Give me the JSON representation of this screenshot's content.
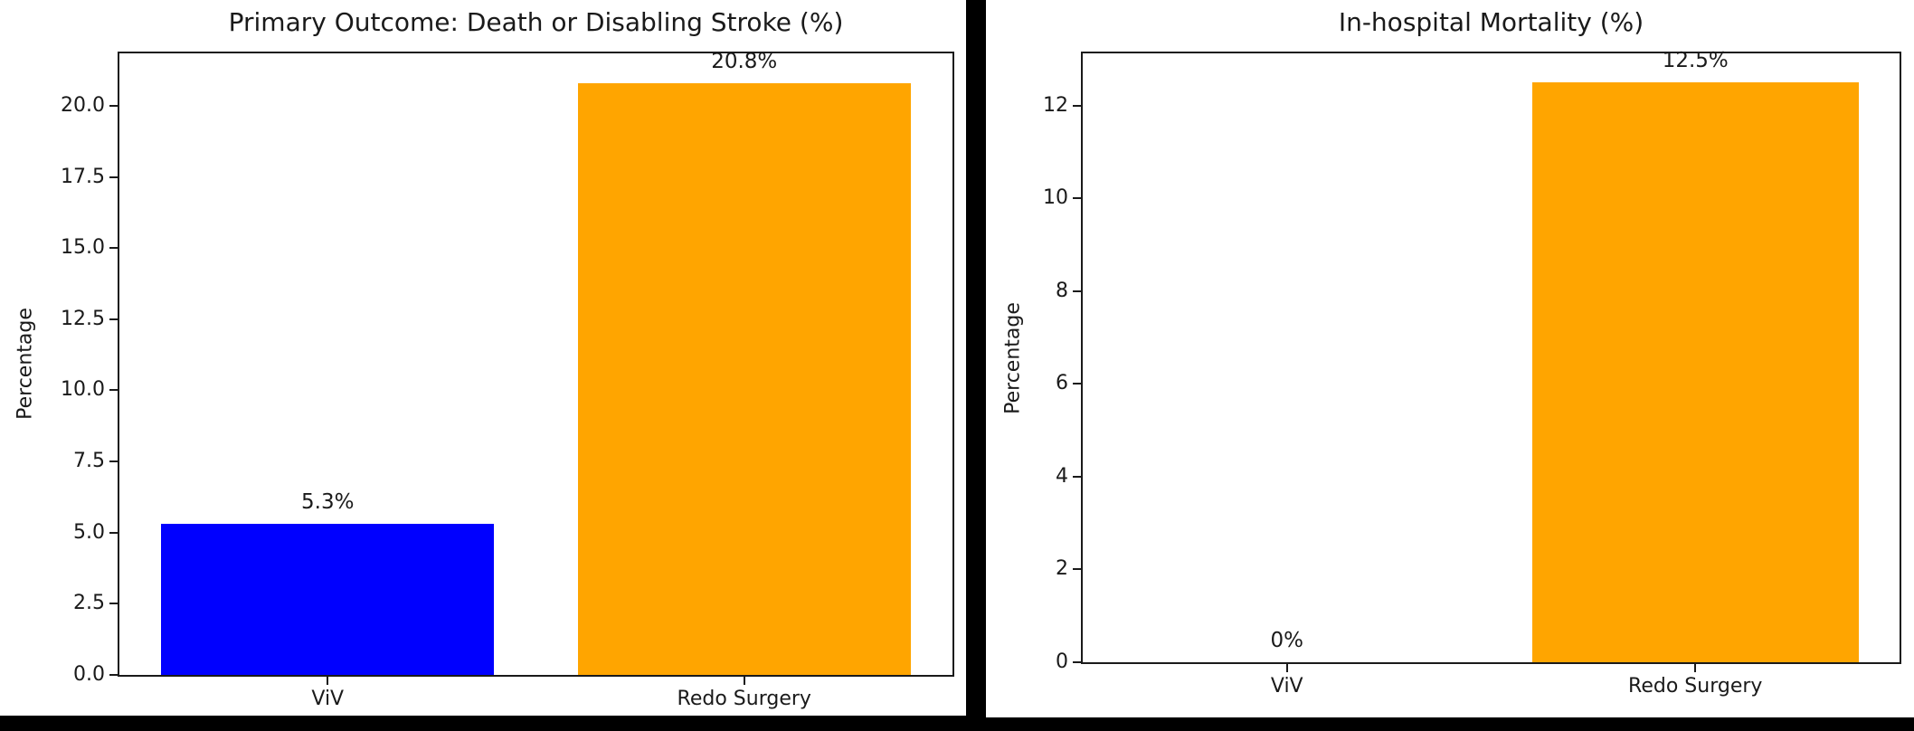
{
  "page_bg": "#000000",
  "panel_bg": "#ffffff",
  "axis_color": "#1a1a1a",
  "chart_data": [
    {
      "type": "bar",
      "title": "Primary Outcome: Death or Disabling Stroke (%)",
      "xlabel": "",
      "ylabel": "Percentage",
      "categories": [
        "ViV",
        "Redo Surgery"
      ],
      "values": [
        5.3,
        20.8
      ],
      "value_labels": [
        "5.3%",
        "20.8%"
      ],
      "bar_colors": [
        "#0000ff",
        "#ffa500"
      ],
      "ylim": [
        0,
        21.84
      ],
      "yticks": [
        0.0,
        2.5,
        5.0,
        7.5,
        10.0,
        12.5,
        15.0,
        17.5,
        20.0
      ],
      "ytick_labels": [
        "0.0",
        "2.5",
        "5.0",
        "7.5",
        "10.0",
        "12.5",
        "15.0",
        "17.5",
        "20.0"
      ],
      "grid": false,
      "legend": null
    },
    {
      "type": "bar",
      "title": "In-hospital Mortality (%)",
      "xlabel": "",
      "ylabel": "Percentage",
      "categories": [
        "ViV",
        "Redo Surgery"
      ],
      "values": [
        0,
        12.5
      ],
      "value_labels": [
        "0%",
        "12.5%"
      ],
      "bar_colors": [
        "#0000ff",
        "#ffa500"
      ],
      "ylim": [
        0,
        13.125
      ],
      "yticks": [
        0,
        2,
        4,
        6,
        8,
        10,
        12
      ],
      "ytick_labels": [
        "0",
        "2",
        "4",
        "6",
        "8",
        "10",
        "12"
      ],
      "grid": false,
      "legend": null
    }
  ]
}
